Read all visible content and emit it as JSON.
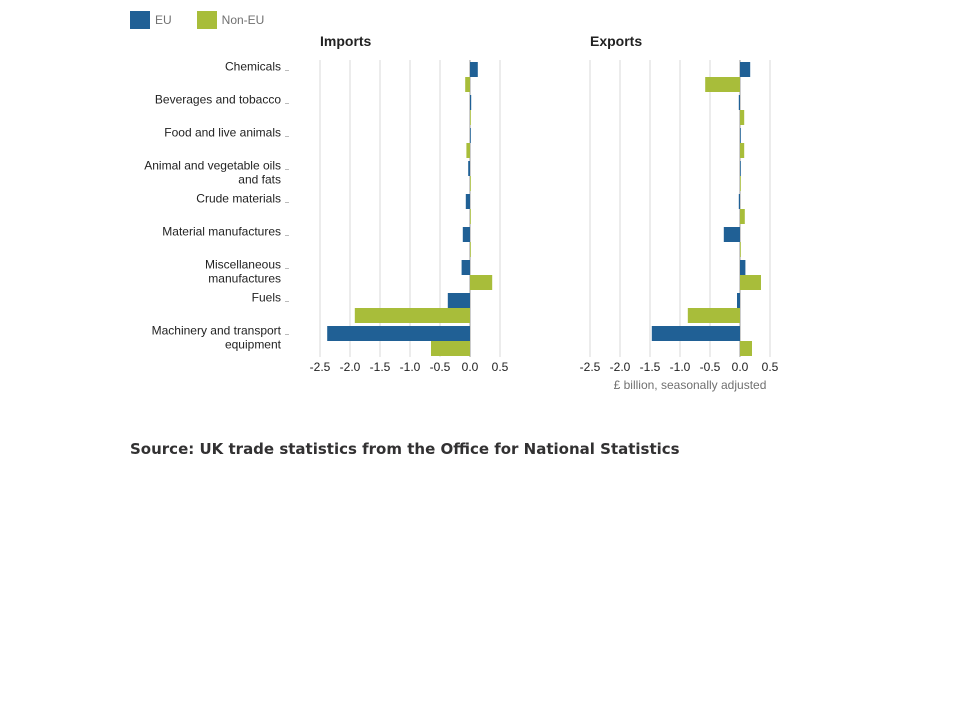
{
  "legend": [
    {
      "label": "EU",
      "color": "#206095"
    },
    {
      "label": "Non-EU",
      "color": "#a8bd3a"
    }
  ],
  "source": "Source: UK trade statistics from the Office for National Statistics",
  "chart_data": {
    "type": "bar",
    "orientation": "horizontal",
    "categories": [
      "Chemicals",
      "Beverages and tobacco",
      "Food and live animals",
      "Animal and vegetable oils and fats",
      "Crude materials",
      "Material manufactures",
      "Miscellaneous manufactures",
      "Fuels",
      "Machinery and transport equipment"
    ],
    "xlim": [
      -2.5,
      0.5
    ],
    "ticks": [
      "-2.5",
      "-2.0",
      "-1.5",
      "-1.0",
      "-0.5",
      "0.0",
      "0.5"
    ],
    "tick_values": [
      -2.5,
      -2.0,
      -1.5,
      -1.0,
      -0.5,
      0.0,
      0.5
    ],
    "xlabel": "£ billion, seasonally adjusted",
    "grid": true,
    "legend_position": "top-left",
    "panels": [
      {
        "title": "Imports",
        "series": [
          {
            "name": "EU",
            "color": "#206095",
            "values": [
              0.13,
              0.02,
              0.01,
              -0.03,
              -0.07,
              -0.12,
              -0.14,
              -0.37,
              -2.38
            ]
          },
          {
            "name": "Non-EU",
            "color": "#a8bd3a",
            "values": [
              -0.08,
              0.0,
              -0.06,
              0.0,
              0.0,
              0.0,
              0.37,
              -1.92,
              -0.65
            ]
          }
        ]
      },
      {
        "title": "Exports",
        "series": [
          {
            "name": "EU",
            "color": "#206095",
            "values": [
              0.17,
              -0.02,
              0.0,
              0.0,
              -0.02,
              -0.27,
              0.09,
              -0.05,
              -1.47
            ]
          },
          {
            "name": "Non-EU",
            "color": "#a8bd3a",
            "values": [
              -0.58,
              0.07,
              0.07,
              0.0,
              0.08,
              0.0,
              0.35,
              -0.87,
              0.2
            ]
          }
        ]
      }
    ]
  }
}
